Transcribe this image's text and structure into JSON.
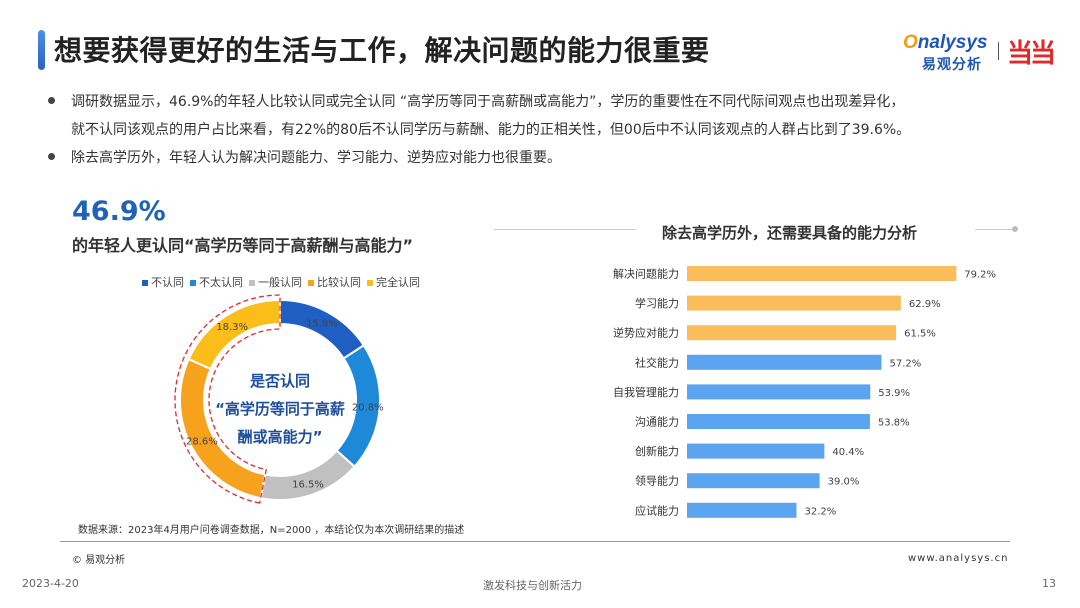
{
  "header": {
    "title": "想要获得更好的生活与工作，解决问题的能力很重要",
    "logo_en": "nalysys",
    "logo_cn": "易观分析",
    "logo_brand": "当当"
  },
  "bullets": [
    "调研数据显示，46.9%的年轻人比较认同或完全认同 “高学历等同于高薪酬或高能力”，学历的重要性在不同代际间观点也出现差异化，",
    "就不认同该观点的用户占比来看，有22%的80后不认同学历与薪酬、能力的正相关性，但00后中不认同该观点的人群占比到了39.6%。",
    "除去高学历外，年轻人认为解决问题能力、学习能力、逆势应对能力也很重要。"
  ],
  "left": {
    "big_pct": "46.9%",
    "subtitle": "的年轻人更认同“高学历等同于高薪酬与高能力”",
    "center_lines": [
      "是否认同",
      "“高学历等同于高薪",
      "酬或高能力”"
    ]
  },
  "right": {
    "title": "除去高学历外，还需要具备的能力分析"
  },
  "chart_data": [
    {
      "type": "pie",
      "title": "是否认同“高学历等同于高薪酬或高能力”",
      "categories": [
        "不认同",
        "不太认同",
        "一般认同",
        "比较认同",
        "完全认同"
      ],
      "values": [
        15.8,
        20.8,
        16.5,
        28.6,
        18.3
      ],
      "labels": [
        "15.8%",
        "20.8%",
        "16.5%",
        "28.6%",
        "18.3%"
      ],
      "colors": [
        "#1f5fc4",
        "#1e88d9",
        "#c0c0c0",
        "#f7a21c",
        "#fbbd1a"
      ],
      "legend": "top",
      "donut": true
    },
    {
      "type": "bar",
      "orientation": "horizontal",
      "title": "除去高学历外，还需要具备的能力分析",
      "categories": [
        "解决问题能力",
        "学习能力",
        "逆势应对能力",
        "社交能力",
        "自我管理能力",
        "沟通能力",
        "创新能力",
        "领导能力",
        "应试能力"
      ],
      "values": [
        79.2,
        62.9,
        61.5,
        57.2,
        53.9,
        53.8,
        40.4,
        39.0,
        32.2
      ],
      "labels": [
        "79.2%",
        "62.9%",
        "61.5%",
        "57.2%",
        "53.9%",
        "53.8%",
        "40.4%",
        "39.0%",
        "32.2%"
      ],
      "colors": [
        "#fbbd5c",
        "#fbbd5c",
        "#fbbd5c",
        "#5ba4ef",
        "#5ba4ef",
        "#5ba4ef",
        "#5ba4ef",
        "#5ba4ef",
        "#5ba4ef"
      ],
      "xlim": [
        0,
        100
      ]
    }
  ],
  "source": "数据来源：2023年4月用户问卷调查数据，N=2000 ，本结论仅为本次调研结果的描述",
  "copyright": "© 易观分析",
  "url": "www.analysys.cn",
  "footer": {
    "date": "2023-4-20",
    "slogan": "激发科技与创新活力",
    "page": "13"
  }
}
